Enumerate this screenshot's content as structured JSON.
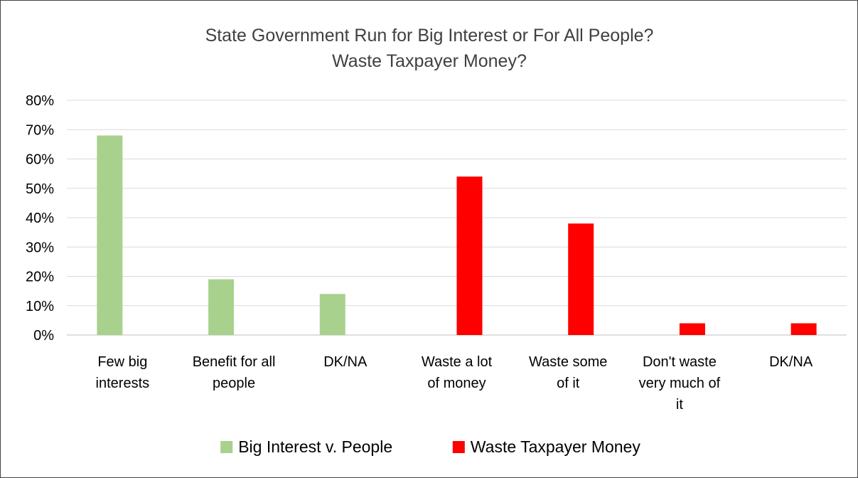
{
  "chart_data": {
    "type": "bar",
    "title": [
      "State Government Run for Big Interest or For All People?",
      "Waste Taxpayer Money?"
    ],
    "categories": [
      [
        "Few big",
        "interests"
      ],
      [
        "Benefit for all",
        "people"
      ],
      [
        "DK/NA"
      ],
      [
        "Waste a lot",
        "of money"
      ],
      [
        "Waste some",
        "of it"
      ],
      [
        "Don't waste",
        "very much of",
        "it"
      ],
      [
        "DK/NA"
      ]
    ],
    "series": [
      {
        "name": "Big Interest v. People",
        "color": "#a9d18e",
        "values": [
          68,
          19,
          14,
          null,
          null,
          null,
          null
        ]
      },
      {
        "name": "Waste Taxpayer Money",
        "color": "#ff0000",
        "values": [
          null,
          null,
          null,
          54,
          38,
          4,
          4
        ]
      }
    ],
    "ylim": [
      0,
      80
    ],
    "yticks": [
      "0%",
      "10%",
      "20%",
      "30%",
      "40%",
      "50%",
      "60%",
      "70%",
      "80%"
    ],
    "xlabel": "",
    "ylabel": "",
    "grid": true,
    "legend": "bottom"
  }
}
